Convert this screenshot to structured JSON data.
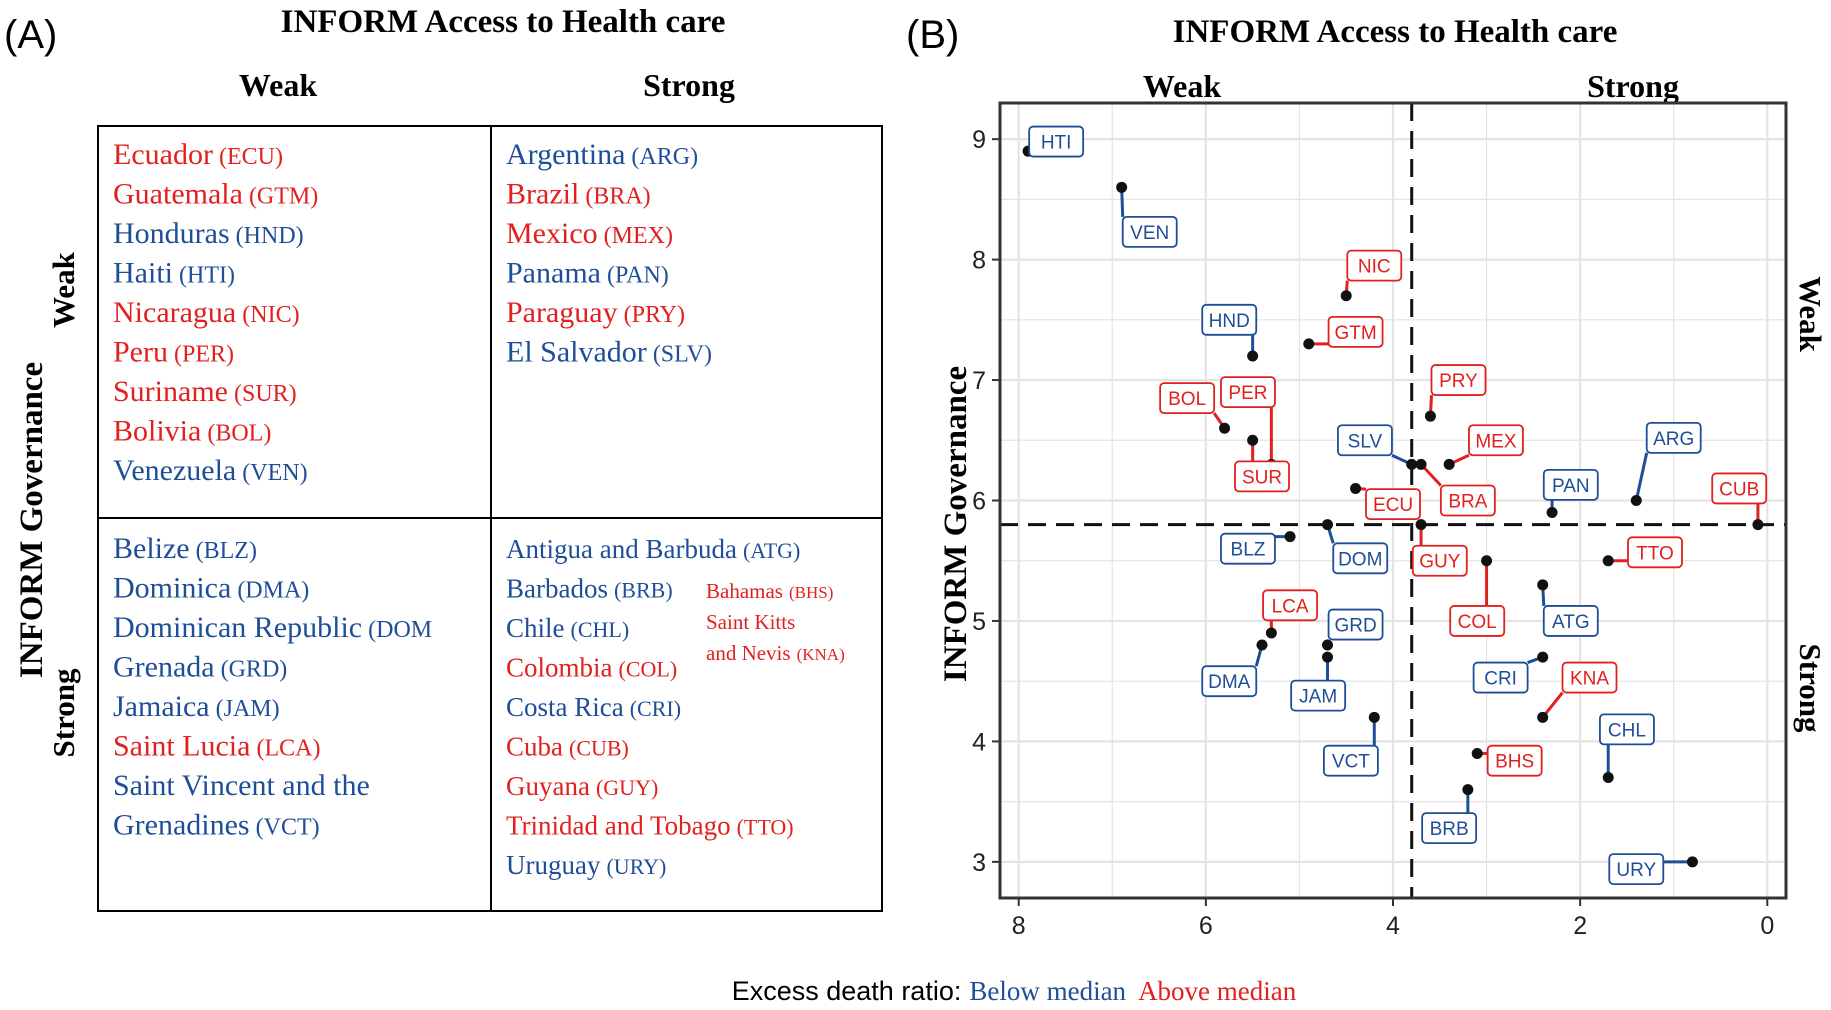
{
  "colors": {
    "blue": "#1f4e99",
    "red": "#e1201f",
    "grid": "#e4e4e4",
    "frame": "#333333",
    "point": "#111111"
  },
  "panel_a": {
    "label": "(A)",
    "title": "INFORM Access to Health care",
    "col_weak": "Weak",
    "col_strong": "Strong",
    "row_title": "INFORM Governance",
    "row_weak": "Weak",
    "row_strong": "Strong",
    "quadrants": {
      "weak_weak": [
        {
          "name": "Ecuador",
          "code": "(ECU)",
          "group": "red"
        },
        {
          "name": "Guatemala",
          "code": "(GTM)",
          "group": "red"
        },
        {
          "name": "Honduras",
          "code": "(HND)",
          "group": "blue"
        },
        {
          "name": "Haiti",
          "code": "(HTI)",
          "group": "blue"
        },
        {
          "name": "Nicaragua",
          "code": "(NIC)",
          "group": "red"
        },
        {
          "name": "Peru",
          "code": "(PER)",
          "group": "red"
        },
        {
          "name": "Suriname",
          "code": "(SUR)",
          "group": "red"
        },
        {
          "name": "Bolivia",
          "code": "(BOL)",
          "group": "red"
        },
        {
          "name": "Venezuela",
          "code": "(VEN)",
          "group": "blue"
        }
      ],
      "weak_strong": [
        {
          "name": "Argentina",
          "code": "(ARG)",
          "group": "blue"
        },
        {
          "name": "Brazil",
          "code": "(BRA)",
          "group": "red"
        },
        {
          "name": "Mexico",
          "code": "(MEX)",
          "group": "red"
        },
        {
          "name": "Panama",
          "code": "(PAN)",
          "group": "blue"
        },
        {
          "name": "Paraguay",
          "code": "(PRY)",
          "group": "red"
        },
        {
          "name": "El Salvador",
          "code": "(SLV)",
          "group": "blue"
        }
      ],
      "strong_weak": [
        {
          "name": "Belize",
          "code": "(BLZ)",
          "group": "blue"
        },
        {
          "name": "Dominica",
          "code": "(DMA)",
          "group": "blue"
        },
        {
          "name": "Dominican Republic",
          "code": "(DOM",
          "group": "blue"
        },
        {
          "name": "Grenada",
          "code": "(GRD)",
          "group": "blue"
        },
        {
          "name": "Jamaica",
          "code": "(JAM)",
          "group": "blue"
        },
        {
          "name": "Saint Lucia",
          "code": "(LCA)",
          "group": "red"
        },
        {
          "name": "Saint Vincent and the",
          "code": "",
          "group": "blue"
        },
        {
          "name": "Grenadines",
          "code": "(VCT)",
          "group": "blue"
        }
      ],
      "strong_strong": [
        {
          "name": "Antigua and Barbuda",
          "code": "(ATG)",
          "group": "blue"
        },
        {
          "name": "Barbados",
          "code": "(BRB)",
          "group": "blue"
        },
        {
          "name": "Chile",
          "code": "(CHL)",
          "group": "blue"
        },
        {
          "name": "Colombia",
          "code": "(COL)",
          "group": "red"
        },
        {
          "name": "Costa Rica",
          "code": "(CRI)",
          "group": "blue"
        },
        {
          "name": "Cuba",
          "code": "(CUB)",
          "group": "red"
        },
        {
          "name": "Guyana",
          "code": "(GUY)",
          "group": "red"
        },
        {
          "name": "Trinidad and Tobago",
          "code": "(TTO)",
          "group": "red"
        },
        {
          "name": "Uruguay",
          "code": "(URY)",
          "group": "blue"
        }
      ],
      "strong_strong_extra": [
        {
          "name": "Bahamas",
          "code": "(BHS)",
          "group": "red"
        },
        {
          "name": "Saint Kitts",
          "code": "",
          "group": "red"
        },
        {
          "name": "and Nevis",
          "code": "(KNA)",
          "group": "red"
        }
      ]
    }
  },
  "panel_b": {
    "label": "(B)",
    "title": "INFORM Access to Health care",
    "top_weak": "Weak",
    "top_strong": "Strong",
    "right_weak": "Weak",
    "right_strong": "Strong"
  },
  "legend": {
    "prefix": "Excess death ratio:",
    "below": "Below median",
    "above": "Above median"
  },
  "chart_data": {
    "type": "scatter",
    "ylabel": "INFORM Governance",
    "xlabel": "",
    "x_reversed": true,
    "xlim": [
      8.2,
      -0.2
    ],
    "ylim": [
      2.7,
      9.3
    ],
    "xticks": [
      8,
      6,
      4,
      2,
      0
    ],
    "yticks": [
      3,
      4,
      5,
      6,
      7,
      8,
      9
    ],
    "median_x": 3.8,
    "median_y": 5.8,
    "grid": true,
    "points": [
      {
        "code": "HTI",
        "x": 7.9,
        "y": 8.9,
        "group": "blue",
        "lx": 7.6,
        "ly": 8.98
      },
      {
        "code": "VEN",
        "x": 6.9,
        "y": 8.6,
        "group": "blue",
        "lx": 6.6,
        "ly": 8.23
      },
      {
        "code": "NIC",
        "x": 4.5,
        "y": 7.7,
        "group": "red",
        "lx": 4.2,
        "ly": 7.95
      },
      {
        "code": "HND",
        "x": 5.5,
        "y": 7.2,
        "group": "blue",
        "lx": 5.75,
        "ly": 7.5
      },
      {
        "code": "GTM",
        "x": 4.9,
        "y": 7.3,
        "group": "red",
        "lx": 4.4,
        "ly": 7.4
      },
      {
        "code": "PRY",
        "x": 3.6,
        "y": 6.7,
        "group": "red",
        "lx": 3.3,
        "ly": 7.0
      },
      {
        "code": "BOL",
        "x": 5.8,
        "y": 6.6,
        "group": "red",
        "lx": 6.2,
        "ly": 6.85
      },
      {
        "code": "PER",
        "x": 5.3,
        "y": 6.3,
        "group": "red",
        "lx": 5.55,
        "ly": 6.9
      },
      {
        "code": "SUR",
        "x": 5.5,
        "y": 6.5,
        "group": "red",
        "lx": 5.4,
        "ly": 6.2
      },
      {
        "code": "SLV",
        "x": 3.8,
        "y": 6.3,
        "group": "blue",
        "lx": 4.3,
        "ly": 6.5
      },
      {
        "code": "MEX",
        "x": 3.4,
        "y": 6.3,
        "group": "red",
        "lx": 2.9,
        "ly": 6.5
      },
      {
        "code": "BRA",
        "x": 3.7,
        "y": 6.3,
        "group": "red",
        "lx": 3.2,
        "ly": 6.0
      },
      {
        "code": "ECU",
        "x": 4.4,
        "y": 6.1,
        "group": "red",
        "lx": 4.0,
        "ly": 5.97
      },
      {
        "code": "ARG",
        "x": 1.4,
        "y": 6.0,
        "group": "blue",
        "lx": 1.0,
        "ly": 6.52
      },
      {
        "code": "PAN",
        "x": 2.3,
        "y": 5.9,
        "group": "blue",
        "lx": 2.1,
        "ly": 6.13
      },
      {
        "code": "CUB",
        "x": 0.1,
        "y": 5.8,
        "group": "red",
        "lx": 0.3,
        "ly": 6.1
      },
      {
        "code": "DOM",
        "x": 4.7,
        "y": 5.8,
        "group": "blue",
        "lx": 4.35,
        "ly": 5.52
      },
      {
        "code": "BLZ",
        "x": 5.1,
        "y": 5.7,
        "group": "blue",
        "lx": 5.55,
        "ly": 5.6
      },
      {
        "code": "GUY",
        "x": 3.7,
        "y": 5.8,
        "group": "red",
        "lx": 3.5,
        "ly": 5.5
      },
      {
        "code": "TTO",
        "x": 1.7,
        "y": 5.5,
        "group": "red",
        "lx": 1.2,
        "ly": 5.57
      },
      {
        "code": "COL",
        "x": 3.0,
        "y": 5.5,
        "group": "red",
        "lx": 3.1,
        "ly": 5.0
      },
      {
        "code": "ATG",
        "x": 2.4,
        "y": 5.3,
        "group": "blue",
        "lx": 2.1,
        "ly": 5.0
      },
      {
        "code": "LCA",
        "x": 5.3,
        "y": 4.9,
        "group": "red",
        "lx": 5.1,
        "ly": 5.13
      },
      {
        "code": "GRD",
        "x": 4.7,
        "y": 4.8,
        "group": "blue",
        "lx": 4.4,
        "ly": 4.97
      },
      {
        "code": "DMA",
        "x": 5.4,
        "y": 4.8,
        "group": "blue",
        "lx": 5.75,
        "ly": 4.5
      },
      {
        "code": "JAM",
        "x": 4.7,
        "y": 4.7,
        "group": "blue",
        "lx": 4.8,
        "ly": 4.38
      },
      {
        "code": "CRI",
        "x": 2.4,
        "y": 4.7,
        "group": "blue",
        "lx": 2.85,
        "ly": 4.53
      },
      {
        "code": "KNA",
        "x": 2.4,
        "y": 4.2,
        "group": "red",
        "lx": 1.9,
        "ly": 4.53
      },
      {
        "code": "VCT",
        "x": 4.2,
        "y": 4.2,
        "group": "blue",
        "lx": 4.45,
        "ly": 3.84
      },
      {
        "code": "BHS",
        "x": 3.1,
        "y": 3.9,
        "group": "red",
        "lx": 2.7,
        "ly": 3.84
      },
      {
        "code": "CHL",
        "x": 1.7,
        "y": 3.7,
        "group": "blue",
        "lx": 1.5,
        "ly": 4.1
      },
      {
        "code": "BRB",
        "x": 3.2,
        "y": 3.6,
        "group": "blue",
        "lx": 3.4,
        "ly": 3.28
      },
      {
        "code": "URY",
        "x": 0.8,
        "y": 3.0,
        "group": "blue",
        "lx": 1.4,
        "ly": 2.94
      }
    ]
  }
}
